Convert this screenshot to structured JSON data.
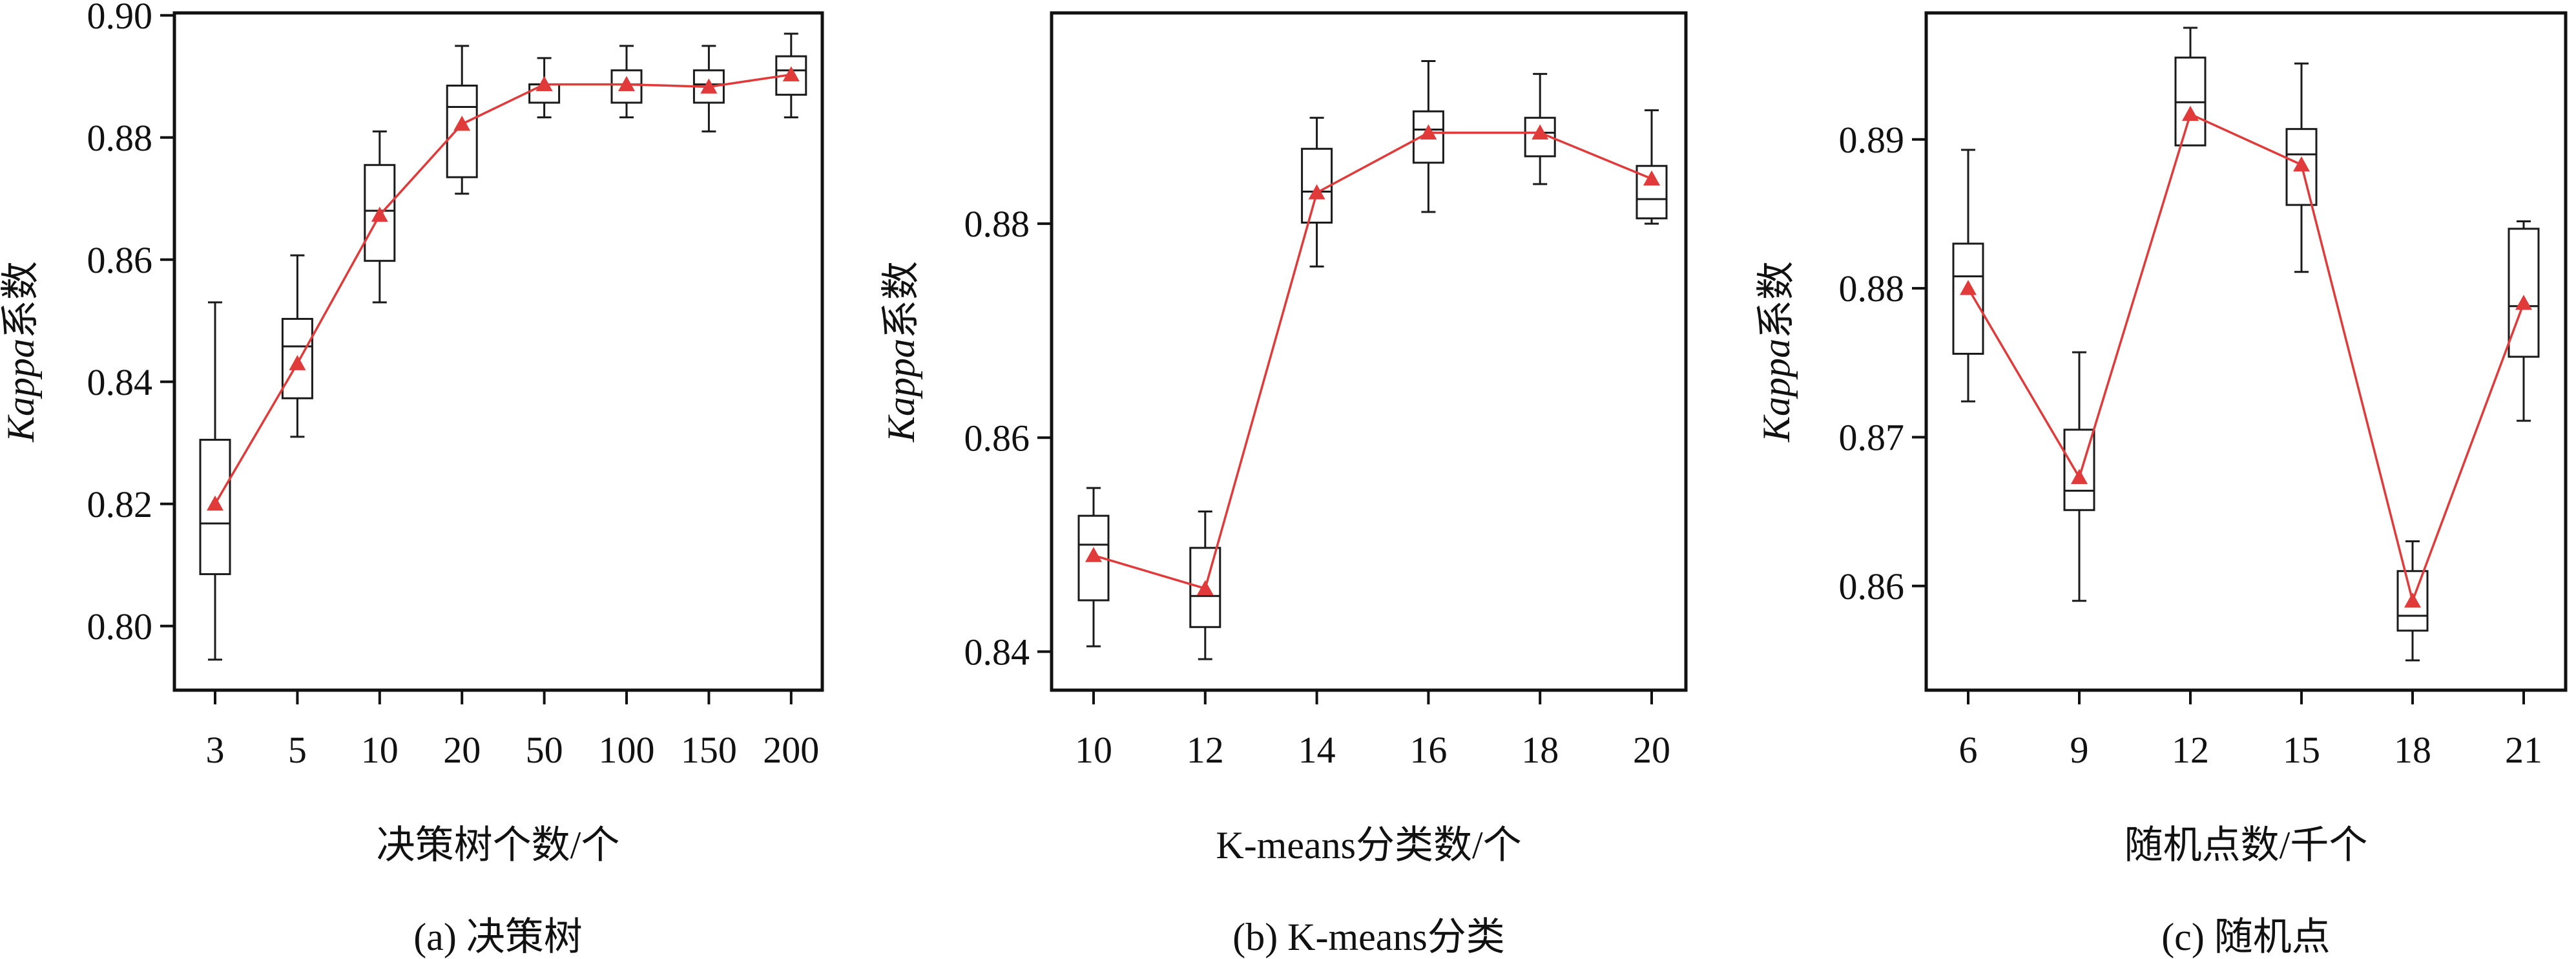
{
  "chart_data": [
    {
      "type": "box",
      "caption": "(a) 决策树",
      "xlabel": "决策树个数/个",
      "ylabel_italic": "Kappa",
      "ylabel_rest": "系数",
      "categories": [
        "3",
        "5",
        "10",
        "20",
        "50",
        "100",
        "150",
        "200"
      ],
      "ylim": [
        0.7895,
        0.9004
      ],
      "yticks": [
        0.8,
        0.82,
        0.84,
        0.86,
        0.88,
        0.9
      ],
      "ytick_labels": [
        "0.80",
        "0.82",
        "0.84",
        "0.86",
        "0.88",
        "0.90"
      ],
      "boxes": [
        {
          "min": 0.7945,
          "q1": 0.8085,
          "median": 0.8168,
          "q3": 0.8305,
          "max": 0.853
        },
        {
          "min": 0.831,
          "q1": 0.8373,
          "median": 0.8458,
          "q3": 0.8503,
          "max": 0.8607
        },
        {
          "min": 0.853,
          "q1": 0.8598,
          "median": 0.868,
          "q3": 0.8755,
          "max": 0.881
        },
        {
          "min": 0.8708,
          "q1": 0.8735,
          "median": 0.885,
          "q3": 0.8885,
          "max": 0.895
        },
        {
          "min": 0.8833,
          "q1": 0.8857,
          "median": 0.8887,
          "q3": 0.8887,
          "max": 0.893
        },
        {
          "min": 0.8833,
          "q1": 0.8857,
          "median": 0.8887,
          "q3": 0.891,
          "max": 0.895
        },
        {
          "min": 0.881,
          "q1": 0.8857,
          "median": 0.8887,
          "q3": 0.891,
          "max": 0.895
        },
        {
          "min": 0.8833,
          "q1": 0.887,
          "median": 0.891,
          "q3": 0.8933,
          "max": 0.897
        }
      ],
      "means": [
        0.82,
        0.843,
        0.8673,
        0.8822,
        0.8887,
        0.8887,
        0.8883,
        0.8903
      ],
      "box_color": "#1a1a1a",
      "mean_color": "#e03a3a"
    },
    {
      "type": "box",
      "caption": "(b) K-means分类",
      "xlabel": "K-means分类数/个",
      "ylabel_italic": "Kappa",
      "ylabel_rest": "系数",
      "categories": [
        "10",
        "12",
        "14",
        "16",
        "18",
        "20"
      ],
      "ylim": [
        0.8364,
        0.8997
      ],
      "yticks": [
        0.84,
        0.86,
        0.88
      ],
      "ytick_labels": [
        "0.84",
        "0.86",
        "0.88"
      ],
      "boxes": [
        {
          "min": 0.8405,
          "q1": 0.8448,
          "median": 0.85,
          "q3": 0.8527,
          "max": 0.8553
        },
        {
          "min": 0.8393,
          "q1": 0.8423,
          "median": 0.8452,
          "q3": 0.8497,
          "max": 0.8531
        },
        {
          "min": 0.876,
          "q1": 0.8801,
          "median": 0.883,
          "q3": 0.887,
          "max": 0.8899
        },
        {
          "min": 0.8811,
          "q1": 0.8857,
          "median": 0.8888,
          "q3": 0.8905,
          "max": 0.8952
        },
        {
          "min": 0.8837,
          "q1": 0.8863,
          "median": 0.8885,
          "q3": 0.8899,
          "max": 0.894
        },
        {
          "min": 0.88,
          "q1": 0.8805,
          "median": 0.8823,
          "q3": 0.8854,
          "max": 0.8906
        }
      ],
      "means": [
        0.849,
        0.8459,
        0.8829,
        0.8885,
        0.8885,
        0.8842
      ],
      "box_color": "#1a1a1a",
      "mean_color": "#e03a3a"
    },
    {
      "type": "box",
      "caption": "(c) 随机点",
      "xlabel": "随机点数/千个",
      "ylabel_italic": "Kappa",
      "ylabel_rest": "系数",
      "categories": [
        "6",
        "9",
        "12",
        "15",
        "18",
        "21"
      ],
      "ylim": [
        0.853,
        0.8985
      ],
      "yticks": [
        0.86,
        0.87,
        0.88,
        0.89
      ],
      "ytick_labels": [
        "0.86",
        "0.87",
        "0.88",
        "0.89"
      ],
      "boxes": [
        {
          "min": 0.8724,
          "q1": 0.8756,
          "median": 0.8808,
          "q3": 0.883,
          "max": 0.8893
        },
        {
          "min": 0.859,
          "q1": 0.8651,
          "median": 0.8664,
          "q3": 0.8705,
          "max": 0.8757
        },
        {
          "min": 0.8896,
          "q1": 0.8896,
          "median": 0.8925,
          "q3": 0.8955,
          "max": 0.8975
        },
        {
          "min": 0.8811,
          "q1": 0.8856,
          "median": 0.889,
          "q3": 0.8907,
          "max": 0.8951
        },
        {
          "min": 0.855,
          "q1": 0.857,
          "median": 0.858,
          "q3": 0.861,
          "max": 0.863
        },
        {
          "min": 0.8711,
          "q1": 0.8754,
          "median": 0.8788,
          "q3": 0.884,
          "max": 0.8845
        }
      ],
      "means": [
        0.88,
        0.8673,
        0.8917,
        0.8883,
        0.859,
        0.879
      ],
      "box_color": "#1a1a1a",
      "mean_color": "#e03a3a"
    }
  ]
}
